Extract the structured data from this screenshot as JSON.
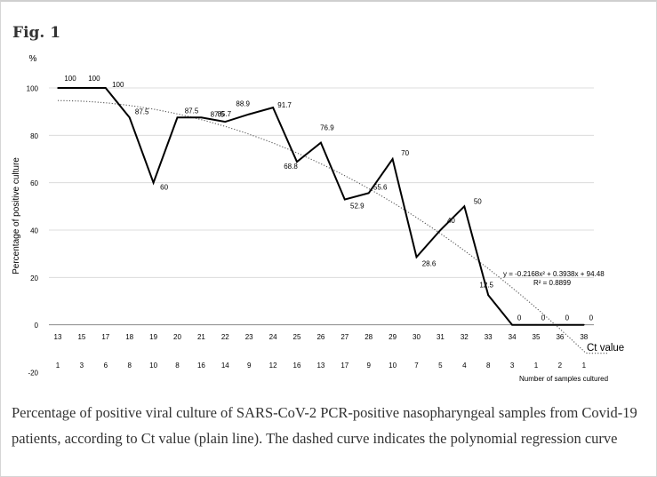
{
  "figure_label": "Fig. 1",
  "caption": "Percentage of positive viral culture of SARS-CoV-2 PCR-positive nasopharyngeal samples from Covid-19 patients, according to Ct value (plain line). The dashed curve indicates the polynomial regression curve",
  "chart_data": {
    "type": "line",
    "title": "",
    "ylabel": "Percentage of positive culture",
    "y_unit_label": "%",
    "xlabel": "Ct value",
    "secondary_row_label": "Number of samples cultured",
    "ylim": [
      -20,
      100
    ],
    "yticks": [
      -20,
      0,
      20,
      40,
      60,
      80,
      100
    ],
    "grid": true,
    "categories": [
      "13",
      "15",
      "17",
      "18",
      "19",
      "20",
      "21",
      "22",
      "23",
      "24",
      "25",
      "26",
      "27",
      "28",
      "29",
      "30",
      "31",
      "32",
      "33",
      "34",
      "35",
      "36",
      "38"
    ],
    "series": [
      {
        "name": "Percentage of positive culture",
        "style": "solid",
        "values": [
          100,
          100,
          100,
          87.5,
          60,
          87.5,
          87.5,
          85.7,
          88.9,
          91.7,
          68.8,
          76.9,
          52.9,
          55.6,
          70,
          28.6,
          40,
          50,
          12.5,
          0,
          0,
          0,
          0
        ],
        "labels": [
          "100",
          "100",
          "100",
          "87.5",
          "60",
          "87.5",
          "87.5",
          "85.7",
          "88.9",
          "91.7",
          "68.8",
          "76.9",
          "52.9",
          "55.6",
          "70",
          "28.6",
          "40",
          "50",
          "12.5",
          "0",
          "0",
          "0",
          "0"
        ]
      }
    ],
    "samples_cultured": [
      "1",
      "3",
      "6",
      "8",
      "10",
      "8",
      "16",
      "14",
      "9",
      "12",
      "16",
      "13",
      "17",
      "9",
      "10",
      "7",
      "5",
      "4",
      "8",
      "3",
      "1",
      "2",
      "1"
    ],
    "regression": {
      "style": "dotted",
      "a": -0.2168,
      "b": 0.3938,
      "c": 94.48,
      "equation_label": "y = -0.2168x² + 0.3938x + 94.48",
      "r2_label": "R² = 0.8899"
    }
  }
}
